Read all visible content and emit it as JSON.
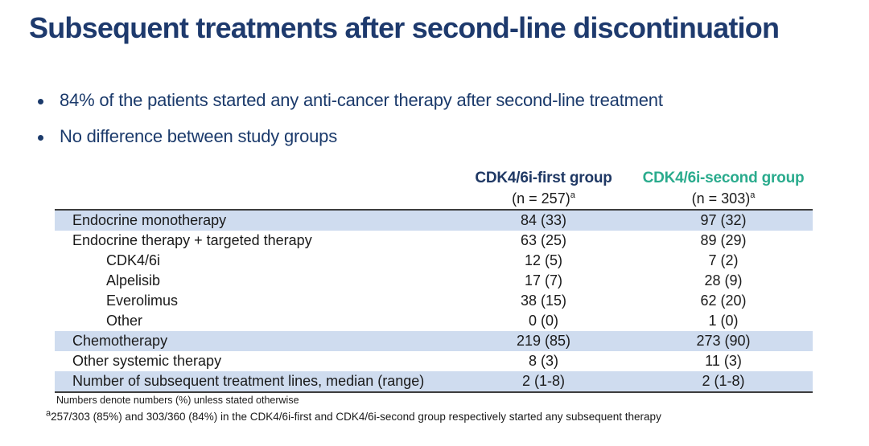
{
  "slide": {
    "title": "Subsequent treatments after second-line discontinuation",
    "bullets": [
      "84% of the patients started any anti-cancer therapy after second-line treatment",
      "No difference between study groups"
    ]
  },
  "table": {
    "columns": [
      {
        "label": "CDK4/6i-first group",
        "n": "(n = 257)",
        "n_sup": "a"
      },
      {
        "label": "CDK4/6i-second group",
        "n": "(n = 303)",
        "n_sup": "a"
      }
    ],
    "rows": [
      {
        "label": "Endocrine monotherapy",
        "col1": "84 (33)",
        "col2": "97 (32)"
      },
      {
        "label": "Endocrine therapy + targeted therapy",
        "col1": "63 (25)",
        "col2": "89 (29)"
      },
      {
        "label": "CDK4/6i",
        "col1": "12 (5)",
        "col2": "7 (2)"
      },
      {
        "label": "Alpelisib",
        "col1": "17 (7)",
        "col2": "28 (9)"
      },
      {
        "label": "Everolimus",
        "col1": "38 (15)",
        "col2": "62 (20)"
      },
      {
        "label": "Other",
        "col1": "0 (0)",
        "col2": "1 (0)"
      },
      {
        "label": "Chemotherapy",
        "col1": "219 (85)",
        "col2": "273 (90)"
      },
      {
        "label": "Other systemic therapy",
        "col1": "8 (3)",
        "col2": "11 (3)"
      },
      {
        "label": "Number of subsequent treatment lines, median (range)",
        "col1": "2 (1-8)",
        "col2": "2 (1-8)"
      }
    ]
  },
  "footnotes": {
    "note1": "Numbers denote numbers (%) unless stated otherwise",
    "note2_sup": "a",
    "note2": "257/303 (85%) and 303/360 (84%) in the CDK4/6i-first and CDK4/6i-second group respectively started any subsequent therapy"
  },
  "colors": {
    "title_navy": "#1e3a6d",
    "first_group_navy": "#1f3864",
    "second_group_teal": "#2aab8d",
    "row_highlight_blue": "#cfdcef",
    "table_border_gray": "#3d3d3d"
  }
}
